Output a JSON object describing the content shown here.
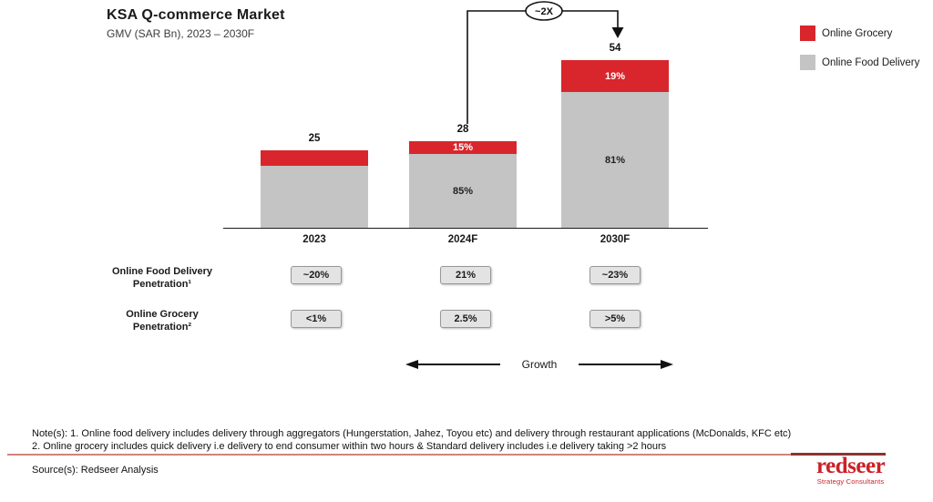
{
  "header": {
    "title": "KSA Q-commerce Market",
    "subtitle": "GMV (SAR Bn), 2023 – 2030F"
  },
  "legend": [
    {
      "label": "Online Grocery",
      "color": "#d8262c"
    },
    {
      "label": "Online Food Delivery",
      "color": "#c4c4c4"
    }
  ],
  "chart_data": {
    "type": "bar",
    "stacked": true,
    "title": "KSA Q-commerce Market",
    "subtitle": "GMV (SAR Bn), 2023 – 2030F",
    "unit": "SAR Bn",
    "categories": [
      "2023",
      "2024F",
      "2030F"
    ],
    "totals": [
      25,
      28,
      54
    ],
    "series": [
      {
        "name": "Online Grocery",
        "color": "#d8262c",
        "pct_labels": [
          null,
          "15%",
          "19%"
        ],
        "fractions": [
          0.2,
          0.15,
          0.19
        ]
      },
      {
        "name": "Online Food Delivery",
        "color": "#c4c4c4",
        "pct_labels": [
          null,
          "85%",
          "81%"
        ]
      }
    ],
    "annotation": "~2X",
    "annotation_meaning": "2024F to 2030F growth multiple",
    "axis": "values labeled on bars, no y-axis shown",
    "legend_position": "top-right"
  },
  "penetration_rows": [
    {
      "label_line1": "Online Food Delivery",
      "label_line2": "Penetration¹",
      "values": [
        "~20%",
        "21%",
        "~23%"
      ]
    },
    {
      "label_line1": "Online Grocery",
      "label_line2": "Penetration²",
      "values": [
        "<1%",
        "2.5%",
        ">5%"
      ]
    }
  ],
  "growth_label": "Growth",
  "notes": {
    "line1": "Note(s): 1. Online food delivery includes delivery through aggregators (Hungerstation, Jahez, Toyou etc) and delivery through restaurant applications (McDonalds, KFC etc)",
    "line2": "2. Online grocery includes quick delivery i.e delivery to end consumer within two hours & Standard delivery includes i.e delivery taking >2 hours"
  },
  "source": "Source(s): Redseer Analysis",
  "logo": {
    "name": "redseer",
    "tagline": "Strategy Consultants"
  }
}
